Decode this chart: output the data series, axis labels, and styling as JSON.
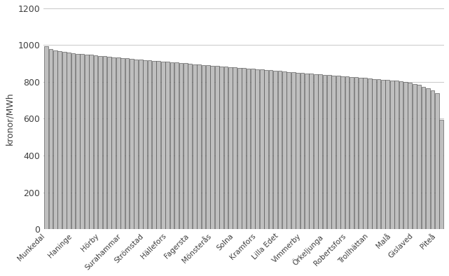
{
  "ylabel": "kronor/MWh",
  "ylim": [
    0,
    1200
  ],
  "yticks": [
    0,
    200,
    400,
    600,
    800,
    1000,
    1200
  ],
  "bar_color": "#bfbfbf",
  "bar_edgecolor": "#404040",
  "bar_linewidth": 0.4,
  "background_color": "#ffffff",
  "labeled_municipalities": {
    "Munkedal": 0,
    "Haninge": 6,
    "Hörby": 12,
    "Surahammar": 17,
    "Strömstad": 22,
    "Hällefors": 27,
    "Fagersta": 32,
    "Mönsterås": 37,
    "Solna": 42,
    "Kramfors": 47,
    "Lilla Edet": 52,
    "Vimmerby": 57,
    "Örkeljunga": 62,
    "Robertsfors": 67,
    "Trollhättan": 72,
    "Malå": 77,
    "Gislaved": 82,
    "Piteå": 87
  },
  "values": [
    995,
    978,
    972,
    968,
    964,
    960,
    956,
    954,
    952,
    950,
    948,
    945,
    942,
    940,
    938,
    935,
    932,
    930,
    928,
    925,
    923,
    921,
    919,
    917,
    915,
    913,
    911,
    909,
    907,
    905,
    903,
    901,
    899,
    897,
    895,
    893,
    891,
    889,
    887,
    885,
    883,
    881,
    879,
    877,
    875,
    873,
    871,
    869,
    867,
    865,
    863,
    861,
    859,
    857,
    855,
    853,
    851,
    849,
    847,
    845,
    843,
    841,
    839,
    837,
    835,
    833,
    831,
    829,
    827,
    825,
    823,
    821,
    819,
    817,
    815,
    813,
    811,
    809,
    807,
    805,
    800,
    795,
    790,
    785,
    775,
    765,
    755,
    740,
    595
  ]
}
